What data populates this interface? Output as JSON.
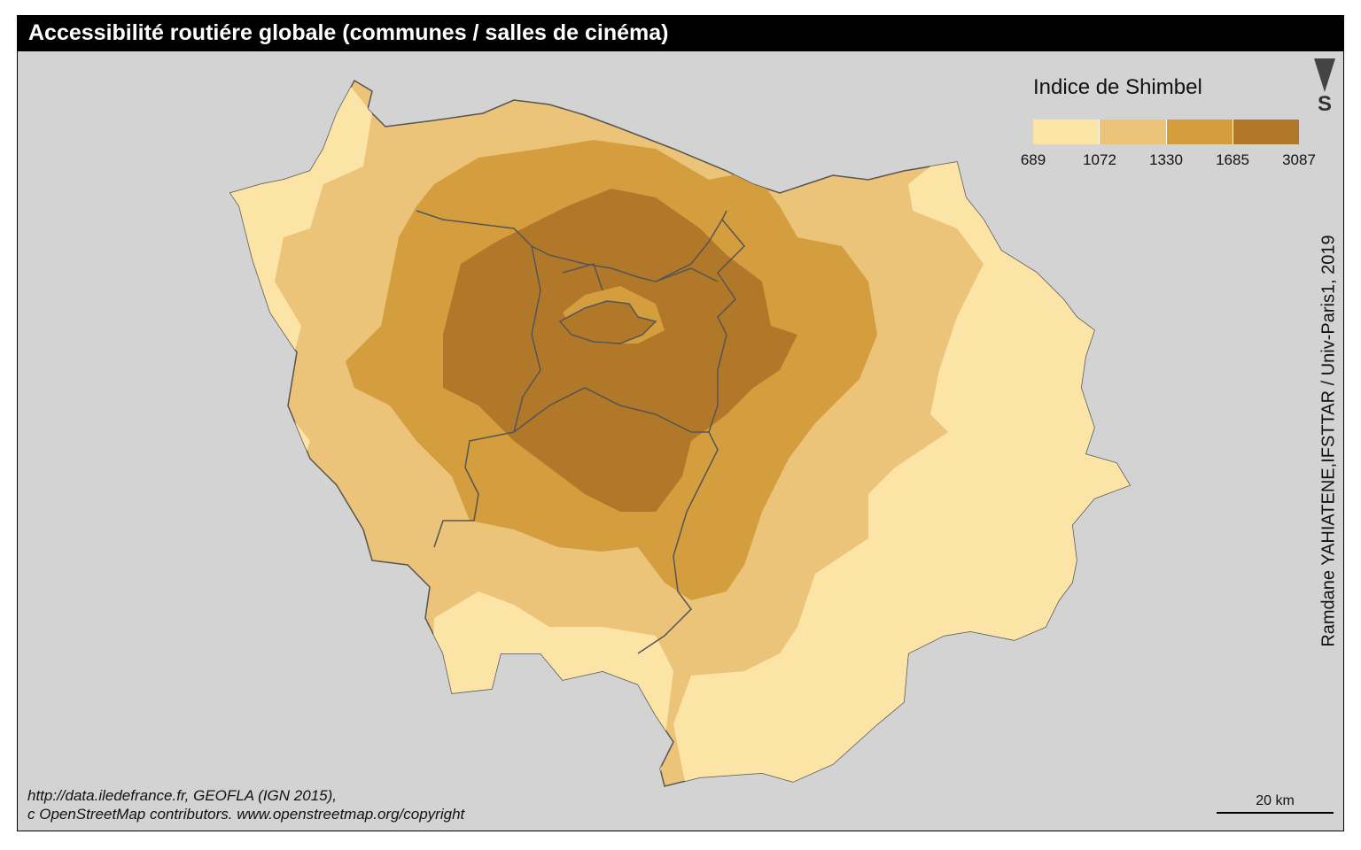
{
  "title": "Accessibilité routiére globale (communes / salles de cinéma)",
  "legend": {
    "title": "Indice de Shimbel",
    "breaks": [
      "689",
      "1072",
      "1330",
      "1685",
      "3087"
    ],
    "colors": [
      "#fce3a6",
      "#ebc47a",
      "#d49d3e",
      "#b07828"
    ]
  },
  "north_arrow": {
    "label": "S"
  },
  "author": "Ramdane YAHIATENE,IFSTTAR / Univ-Paris1, 2019",
  "source": {
    "line1": "http://data.iledefrance.fr, GEOFLA (IGN 2015),",
    "line2": "c OpenStreetMap contributors. www.openstreetmap.org/copyright"
  },
  "scale_bar": {
    "label": "20 km"
  },
  "colors": {
    "background": "#d3d3d3",
    "border": "#555555",
    "title_bar": "#000000"
  }
}
